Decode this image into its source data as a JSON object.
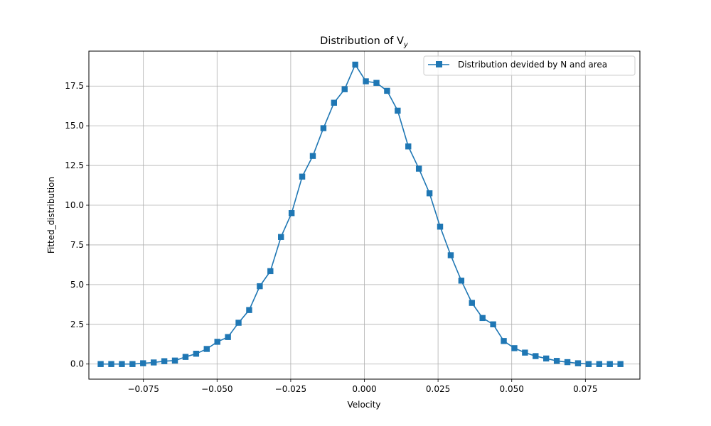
{
  "chart_data": {
    "type": "line",
    "title": "Distribution of V",
    "title_subscript": "y",
    "xlabel": "Velocity",
    "ylabel": "Fitted_distribution",
    "xlim": [
      -0.0935,
      0.0935
    ],
    "ylim": [
      -0.95,
      19.7
    ],
    "xticks": [
      -0.075,
      -0.05,
      -0.025,
      0.0,
      0.025,
      0.05,
      0.075
    ],
    "xtick_labels": [
      "−0.075",
      "−0.050",
      "−0.025",
      "0.000",
      "0.025",
      "0.050",
      "0.075"
    ],
    "yticks": [
      0.0,
      2.5,
      5.0,
      7.5,
      10.0,
      12.5,
      15.0,
      17.5
    ],
    "ytick_labels": [
      "0.0",
      "2.5",
      "5.0",
      "7.5",
      "10.0",
      "12.5",
      "15.0",
      "17.5"
    ],
    "grid": true,
    "legend_position": "top-right",
    "series_color": "#1f77b4",
    "marker": "square",
    "series": [
      {
        "name": "Distribution devided by N and area",
        "x": [
          -0.0895,
          -0.0859,
          -0.0823,
          -0.0787,
          -0.0751,
          -0.0715,
          -0.0679,
          -0.0643,
          -0.0607,
          -0.0571,
          -0.0535,
          -0.0499,
          -0.0463,
          -0.0427,
          -0.0391,
          -0.0355,
          -0.0319,
          -0.0283,
          -0.0247,
          -0.0211,
          -0.0175,
          -0.0139,
          -0.0103,
          -0.0067,
          -0.0031,
          0.0005,
          0.0041,
          0.0077,
          0.0113,
          0.0149,
          0.0185,
          0.0221,
          0.0257,
          0.0293,
          0.0329,
          0.0365,
          0.0401,
          0.0437,
          0.0473,
          0.0509,
          0.0545,
          0.0581,
          0.0617,
          0.0653,
          0.0689,
          0.0725,
          0.0761,
          0.0797,
          0.0833,
          0.0869
        ],
        "y": [
          0.0,
          0.0,
          0.0,
          0.0,
          0.05,
          0.1,
          0.18,
          0.22,
          0.45,
          0.65,
          0.95,
          1.4,
          1.7,
          2.6,
          3.4,
          4.9,
          5.85,
          8.0,
          9.5,
          11.8,
          13.1,
          14.85,
          16.45,
          17.3,
          18.85,
          17.8,
          17.7,
          17.2,
          15.95,
          13.7,
          12.3,
          10.75,
          8.65,
          6.85,
          5.25,
          3.85,
          2.9,
          2.5,
          1.45,
          1.0,
          0.72,
          0.5,
          0.35,
          0.2,
          0.12,
          0.05,
          0.0,
          0.0,
          0.0,
          0.0
        ]
      }
    ]
  }
}
